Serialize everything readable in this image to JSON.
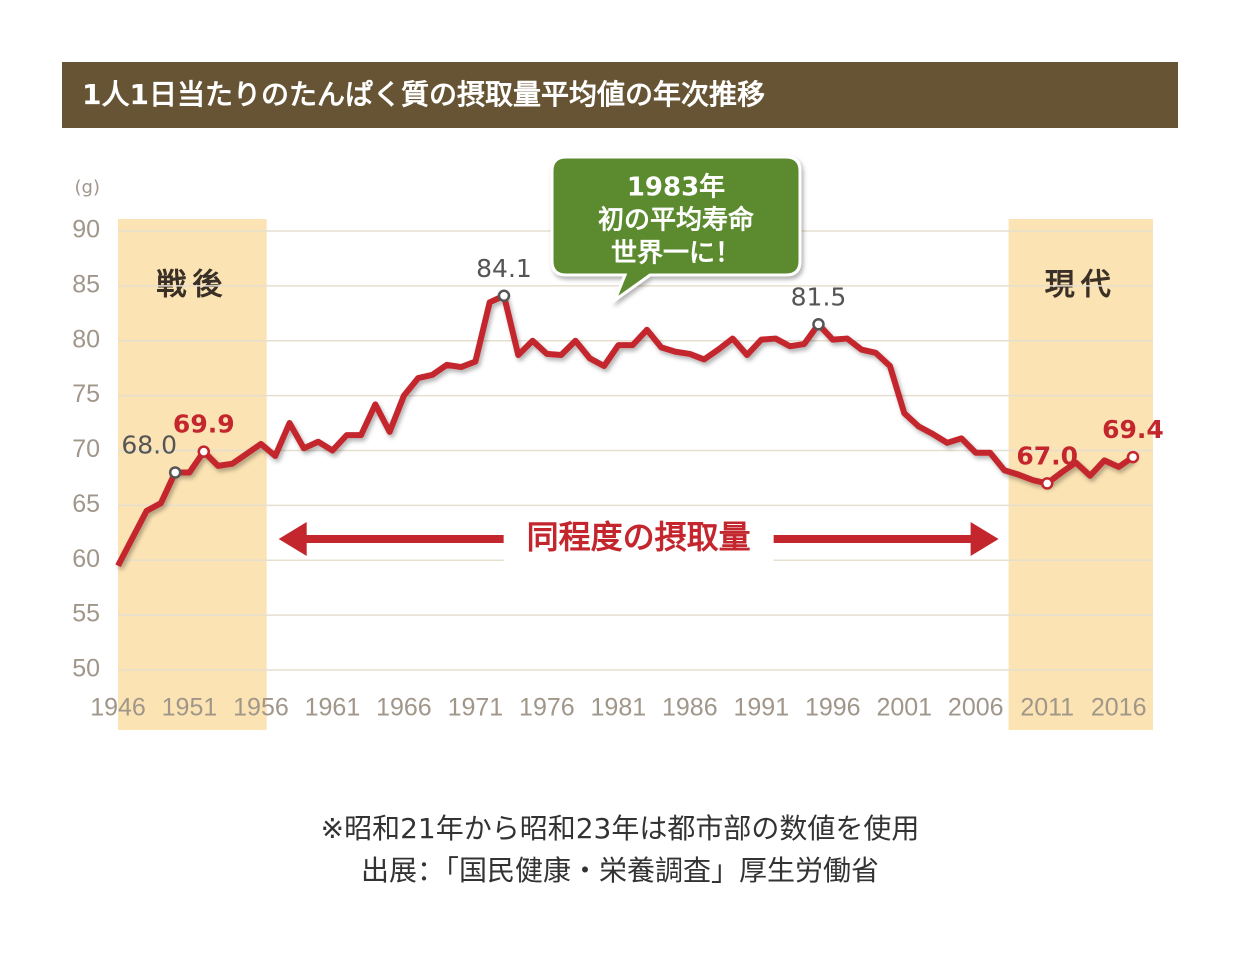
{
  "chart_data": {
    "type": "line",
    "title": "1人1日当たりのたんぱく質の摂取量平均値の年次推移",
    "y_label": "(g)",
    "x": [
      1946,
      1947,
      1948,
      1949,
      1950,
      1951,
      1952,
      1953,
      1954,
      1955,
      1956,
      1957,
      1958,
      1959,
      1960,
      1961,
      1962,
      1963,
      1964,
      1965,
      1966,
      1967,
      1968,
      1969,
      1970,
      1971,
      1972,
      1973,
      1974,
      1975,
      1976,
      1977,
      1978,
      1979,
      1980,
      1981,
      1982,
      1983,
      1984,
      1985,
      1986,
      1987,
      1988,
      1989,
      1990,
      1991,
      1992,
      1993,
      1994,
      1995,
      1996,
      1997,
      1998,
      1999,
      2000,
      2001,
      2002,
      2003,
      2004,
      2005,
      2006,
      2007,
      2008,
      2009,
      2010,
      2011,
      2012,
      2013,
      2014,
      2015,
      2016,
      2017
    ],
    "series": [
      {
        "color": "#c4262e",
        "values": [
          59.5,
          62.0,
          64.5,
          65.2,
          68.0,
          68.0,
          69.9,
          68.6,
          68.8,
          69.7,
          70.6,
          69.5,
          72.5,
          70.2,
          70.8,
          70.0,
          71.4,
          71.4,
          74.2,
          71.7,
          75.0,
          76.6,
          76.9,
          77.8,
          77.6,
          78.1,
          83.5,
          84.1,
          78.7,
          80.0,
          78.8,
          78.7,
          80.0,
          78.4,
          77.7,
          79.6,
          79.6,
          81.0,
          79.4,
          79.0,
          78.8,
          78.3,
          79.2,
          80.2,
          78.7,
          80.1,
          80.2,
          79.5,
          79.7,
          81.5,
          80.1,
          80.2,
          79.2,
          78.9,
          77.7,
          73.4,
          72.2,
          71.5,
          70.7,
          71.1,
          69.8,
          69.8,
          68.2,
          67.8,
          67.3,
          67.0,
          68.0,
          68.9,
          67.7,
          69.1,
          68.5,
          69.4
        ],
        "value_labels": [
          null,
          null,
          null,
          null,
          "68.0",
          null,
          "69.9",
          null,
          null,
          null,
          null,
          null,
          null,
          null,
          null,
          null,
          null,
          null,
          null,
          null,
          null,
          null,
          null,
          null,
          null,
          null,
          null,
          "84.1",
          null,
          null,
          null,
          null,
          null,
          null,
          null,
          null,
          null,
          null,
          null,
          null,
          null,
          null,
          null,
          null,
          null,
          null,
          null,
          null,
          null,
          "81.5",
          null,
          null,
          null,
          null,
          null,
          null,
          null,
          null,
          null,
          null,
          null,
          null,
          null,
          null,
          null,
          "67.0",
          null,
          null,
          null,
          null,
          null,
          "69.4"
        ],
        "value_label_colors": [
          null,
          null,
          null,
          null,
          "#555555",
          null,
          "#c4262e",
          null,
          null,
          null,
          null,
          null,
          null,
          null,
          null,
          null,
          null,
          null,
          null,
          null,
          null,
          null,
          null,
          null,
          null,
          null,
          null,
          "#555555",
          null,
          null,
          null,
          null,
          null,
          null,
          null,
          null,
          null,
          null,
          null,
          null,
          null,
          null,
          null,
          null,
          null,
          null,
          null,
          null,
          null,
          "#555555",
          null,
          null,
          null,
          null,
          null,
          null,
          null,
          null,
          null,
          null,
          null,
          null,
          null,
          null,
          null,
          "#c4262e",
          null,
          null,
          null,
          null,
          null,
          "#c4262e"
        ]
      }
    ],
    "xlim": [
      1946,
      2018.4
    ],
    "xticks": [
      1946,
      1951,
      1956,
      1961,
      1966,
      1971,
      1976,
      1981,
      1986,
      1991,
      1996,
      2001,
      2006,
      2011,
      2016
    ],
    "ylim": [
      50,
      90
    ],
    "yticks": [
      50,
      55,
      60,
      65,
      70,
      75,
      80,
      85,
      90
    ],
    "grid": true,
    "bands": [
      {
        "label": "戦後",
        "range": [
          1946,
          1956.4
        ],
        "color": "#fbe3b3"
      },
      {
        "label": "現代",
        "range": [
          2008.3,
          2018.4
        ],
        "color": "#fbe3b3"
      }
    ],
    "arrow_label": "同程度の摂取量",
    "callout": [
      "1983年",
      "初の平均寿命",
      "世界一に！"
    ],
    "notes": [
      "※昭和21年から昭和23年は都市部の数値を使用",
      "出展：「国民健康・栄養調査」厚生労働省"
    ]
  }
}
